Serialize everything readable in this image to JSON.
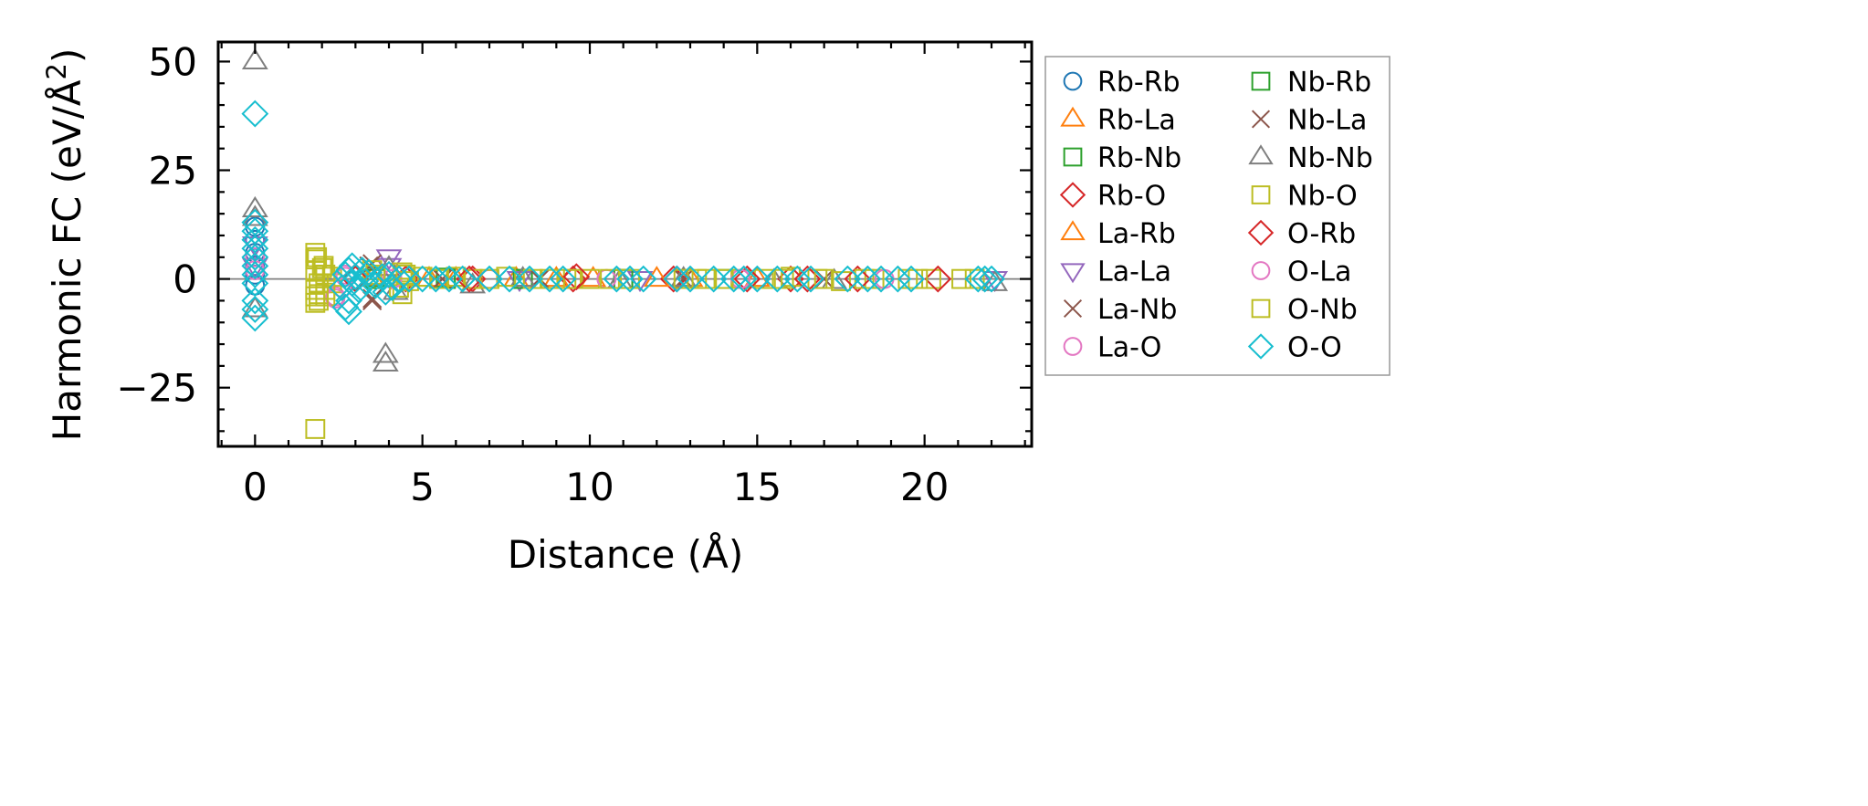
{
  "chart_data": {
    "type": "scatter",
    "title": "",
    "xlabel": "Distance (Å)",
    "ylabel_main": "Harmonic FC (eV/Å",
    "ylabel_sup": "2",
    "ylabel_close": ")",
    "xlim": [
      -1.1,
      23.2
    ],
    "ylim": [
      -38.5,
      54.5
    ],
    "xticks": [
      0,
      5,
      10,
      15,
      20
    ],
    "xtick_labels": [
      "0",
      "5",
      "10",
      "15",
      "20"
    ],
    "yticks": [
      -25,
      0,
      25,
      50
    ],
    "ytick_labels": [
      "−25",
      "0",
      "25",
      "50"
    ],
    "x_minor_step": 1,
    "y_minor_step": 5,
    "zero_line": true,
    "grid": false,
    "legend_position": "outside-right",
    "legend_columns": 2,
    "series": [
      {
        "name": "Rb-Rb",
        "marker": "circle",
        "color": "#1f77b4",
        "points": [
          [
            0,
            -1.5
          ],
          [
            0,
            1
          ],
          [
            0,
            3
          ],
          [
            0,
            6
          ],
          [
            0,
            9
          ],
          [
            0,
            12
          ]
        ]
      },
      {
        "name": "Rb-La",
        "marker": "triangle-up",
        "color": "#ff7f0e",
        "points": [
          [
            3.5,
            0
          ],
          [
            5.2,
            0
          ],
          [
            7.8,
            0
          ],
          [
            10.1,
            0
          ],
          [
            13.0,
            0
          ]
        ]
      },
      {
        "name": "Rb-Nb",
        "marker": "square",
        "color": "#2ca02c",
        "points": [
          [
            3.6,
            0.5
          ],
          [
            5.7,
            0
          ],
          [
            8.0,
            0
          ],
          [
            11.0,
            0
          ],
          [
            14.0,
            0
          ]
        ]
      },
      {
        "name": "Rb-O",
        "marker": "diamond",
        "color": "#d62728",
        "points": [
          [
            3.0,
            0.5
          ],
          [
            4.5,
            0
          ],
          [
            6.5,
            0
          ],
          [
            9.5,
            0
          ],
          [
            12.5,
            0
          ],
          [
            16.0,
            0
          ]
        ]
      },
      {
        "name": "La-Rb",
        "marker": "triangle-up",
        "color": "#ff7f0e",
        "points": [
          [
            3.5,
            0.3
          ],
          [
            6.0,
            0
          ],
          [
            9.0,
            0
          ],
          [
            12.0,
            0
          ],
          [
            15.0,
            0
          ]
        ]
      },
      {
        "name": "La-La",
        "marker": "triangle-down",
        "color": "#9467bd",
        "points": [
          [
            0,
            3
          ],
          [
            0,
            8
          ],
          [
            4.0,
            5
          ],
          [
            4.0,
            3
          ],
          [
            7.9,
            0
          ],
          [
            11.5,
            0
          ],
          [
            22.1,
            0
          ]
        ]
      },
      {
        "name": "La-Nb",
        "marker": "x",
        "color": "#8c564b",
        "points": [
          [
            3.5,
            -5
          ],
          [
            3.5,
            3.5
          ],
          [
            5.6,
            0
          ],
          [
            8.5,
            0
          ],
          [
            12.8,
            0
          ],
          [
            17.0,
            0
          ]
        ]
      },
      {
        "name": "La-O",
        "marker": "circle",
        "color": "#e377c2",
        "points": [
          [
            0,
            2
          ],
          [
            0,
            5
          ],
          [
            2.4,
            -4
          ],
          [
            2.6,
            -2
          ],
          [
            2.7,
            1
          ],
          [
            4.1,
            0
          ],
          [
            7.0,
            0
          ],
          [
            10.5,
            0
          ],
          [
            14.5,
            0
          ]
        ]
      },
      {
        "name": "Nb-Rb",
        "marker": "square",
        "color": "#2ca02c",
        "points": [
          [
            3.6,
            0
          ],
          [
            5.7,
            0.3
          ],
          [
            8.0,
            0
          ],
          [
            11.0,
            0
          ]
        ]
      },
      {
        "name": "Nb-La",
        "marker": "x",
        "color": "#8c564b",
        "points": [
          [
            3.5,
            -4.5
          ],
          [
            3.4,
            3
          ],
          [
            5.6,
            0
          ],
          [
            8.5,
            0
          ],
          [
            12.8,
            0
          ]
        ]
      },
      {
        "name": "Nb-Nb",
        "marker": "triangle-up",
        "color": "#7f7f7f",
        "points": [
          [
            0,
            50
          ],
          [
            0,
            16
          ],
          [
            0,
            14
          ],
          [
            0,
            -7
          ],
          [
            3.9,
            -17.5
          ],
          [
            3.9,
            -19.5
          ],
          [
            4.0,
            2.5
          ],
          [
            4.2,
            -3
          ],
          [
            6.5,
            -1.5
          ],
          [
            8.0,
            0
          ],
          [
            10.9,
            -0.5
          ],
          [
            12.8,
            0
          ],
          [
            15.5,
            -0.5
          ],
          [
            17.3,
            -0.5
          ],
          [
            22.1,
            -1
          ]
        ]
      },
      {
        "name": "Nb-O",
        "marker": "square",
        "color": "#bcbd22",
        "points": [
          [
            1.8,
            -34.5
          ],
          [
            1.8,
            6
          ],
          [
            1.8,
            4.5
          ],
          [
            1.8,
            2
          ],
          [
            1.9,
            -1
          ],
          [
            1.8,
            -2.5
          ],
          [
            1.8,
            -4
          ],
          [
            1.8,
            -5.5
          ],
          [
            1.9,
            -3.5
          ],
          [
            2.0,
            2.5
          ],
          [
            2.1,
            -4
          ],
          [
            2.1,
            1
          ],
          [
            2.3,
            0.5
          ],
          [
            2.3,
            -1
          ],
          [
            3.5,
            2
          ],
          [
            4.4,
            -3.5
          ],
          [
            4.4,
            1.5
          ],
          [
            4.6,
            -0.5
          ],
          [
            5.0,
            0.5
          ],
          [
            6.0,
            0.5
          ],
          [
            6.5,
            0
          ],
          [
            7.5,
            0.5
          ],
          [
            8.8,
            0
          ],
          [
            9.5,
            0
          ],
          [
            10.0,
            0
          ],
          [
            11.2,
            0
          ],
          [
            12.8,
            0
          ],
          [
            13.5,
            0
          ],
          [
            14.5,
            0
          ],
          [
            15.2,
            0
          ],
          [
            16.0,
            0.5
          ],
          [
            16.8,
            0
          ],
          [
            17.5,
            -0.5
          ],
          [
            18.5,
            0
          ],
          [
            19.5,
            0
          ],
          [
            20.2,
            0
          ],
          [
            21.1,
            0
          ]
        ]
      },
      {
        "name": "O-Rb",
        "marker": "diamond",
        "color": "#d62728",
        "points": [
          [
            3.0,
            0
          ],
          [
            4.6,
            0
          ],
          [
            6.4,
            0
          ],
          [
            9.6,
            0.5
          ],
          [
            12.6,
            0
          ],
          [
            14.7,
            0
          ],
          [
            16.5,
            0
          ],
          [
            18.0,
            0
          ],
          [
            20.4,
            0
          ]
        ]
      },
      {
        "name": "O-La",
        "marker": "circle",
        "color": "#e377c2",
        "points": [
          [
            2.4,
            -4.5
          ],
          [
            2.6,
            -2
          ],
          [
            2.7,
            0.5
          ],
          [
            4.1,
            0
          ],
          [
            7.0,
            0
          ],
          [
            10.5,
            0
          ],
          [
            14.5,
            0
          ],
          [
            18.8,
            0
          ]
        ]
      },
      {
        "name": "O-Nb",
        "marker": "square",
        "color": "#bcbd22",
        "points": [
          [
            1.85,
            5
          ],
          [
            1.9,
            -5
          ],
          [
            2.05,
            3
          ],
          [
            2.1,
            -2.5
          ],
          [
            3.6,
            1
          ],
          [
            4.3,
            -2
          ],
          [
            4.5,
            1
          ],
          [
            5.5,
            0
          ],
          [
            7.0,
            0
          ],
          [
            8.3,
            0
          ],
          [
            9.3,
            0
          ],
          [
            10.6,
            0
          ],
          [
            13.2,
            0
          ],
          [
            14.0,
            0
          ],
          [
            15.8,
            0
          ],
          [
            17.0,
            0
          ],
          [
            18.2,
            0
          ],
          [
            19.8,
            0
          ],
          [
            21.5,
            0
          ]
        ]
      },
      {
        "name": "O-O",
        "marker": "diamond",
        "color": "#17becf",
        "points": [
          [
            0,
            38
          ],
          [
            0,
            13
          ],
          [
            0,
            11
          ],
          [
            0,
            9
          ],
          [
            0,
            7
          ],
          [
            0,
            5
          ],
          [
            0,
            3
          ],
          [
            0,
            1
          ],
          [
            0,
            -1
          ],
          [
            0,
            -5
          ],
          [
            0,
            -7
          ],
          [
            0,
            -9
          ],
          [
            2.7,
            -6.5
          ],
          [
            2.8,
            -7.5
          ],
          [
            2.8,
            -5
          ],
          [
            2.6,
            -2
          ],
          [
            2.7,
            1
          ],
          [
            2.8,
            2
          ],
          [
            2.9,
            -1
          ],
          [
            2.9,
            3
          ],
          [
            3.0,
            0.5
          ],
          [
            3.1,
            -2.5
          ],
          [
            3.2,
            2
          ],
          [
            3.3,
            -0.5
          ],
          [
            3.4,
            1.5
          ],
          [
            3.6,
            -1.5
          ],
          [
            3.8,
            0.5
          ],
          [
            3.9,
            -3
          ],
          [
            4.0,
            1
          ],
          [
            4.1,
            -2
          ],
          [
            4.3,
            0
          ],
          [
            4.6,
            0
          ],
          [
            5.0,
            0
          ],
          [
            5.4,
            0
          ],
          [
            5.8,
            0
          ],
          [
            6.2,
            0
          ],
          [
            7.0,
            0
          ],
          [
            7.6,
            0
          ],
          [
            8.2,
            0
          ],
          [
            8.8,
            0
          ],
          [
            9.2,
            0
          ],
          [
            10.8,
            0
          ],
          [
            11.2,
            0
          ],
          [
            11.6,
            0
          ],
          [
            12.6,
            0
          ],
          [
            13.0,
            0
          ],
          [
            13.7,
            0
          ],
          [
            14.3,
            0
          ],
          [
            14.6,
            0
          ],
          [
            15.0,
            0
          ],
          [
            15.6,
            0
          ],
          [
            16.2,
            0
          ],
          [
            16.6,
            0
          ],
          [
            17.7,
            0
          ],
          [
            18.3,
            0
          ],
          [
            18.7,
            0
          ],
          [
            19.2,
            0
          ],
          [
            19.6,
            0
          ],
          [
            21.6,
            0
          ],
          [
            21.8,
            0
          ],
          [
            22.0,
            0
          ]
        ]
      }
    ]
  }
}
